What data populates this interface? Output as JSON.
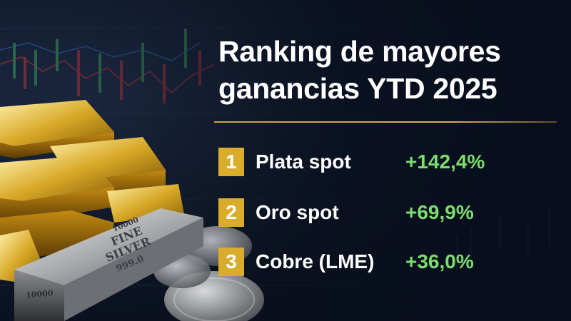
{
  "title": {
    "line1": "Ranking de mayores",
    "line2": "ganancias YTD 2025"
  },
  "ranking": [
    {
      "rank": "1",
      "label": "Plata spot",
      "value": "+142,4%"
    },
    {
      "rank": "2",
      "label": "Oro spot",
      "value": "+69,9%"
    },
    {
      "rank": "3",
      "label": "Cobre (LME)",
      "value": "+36,0%"
    }
  ],
  "image_text": {
    "silver_bar_line1": "10000",
    "silver_bar_line2": "FINE",
    "silver_bar_line3": "SILVER",
    "silver_bar_line4": "999.0",
    "silver_bar_side": "10000"
  },
  "colors": {
    "background": "#0b1322",
    "accent_gold": "#d9ac2c",
    "positive_green": "#7ddc6e",
    "title_text": "#ffffff"
  }
}
